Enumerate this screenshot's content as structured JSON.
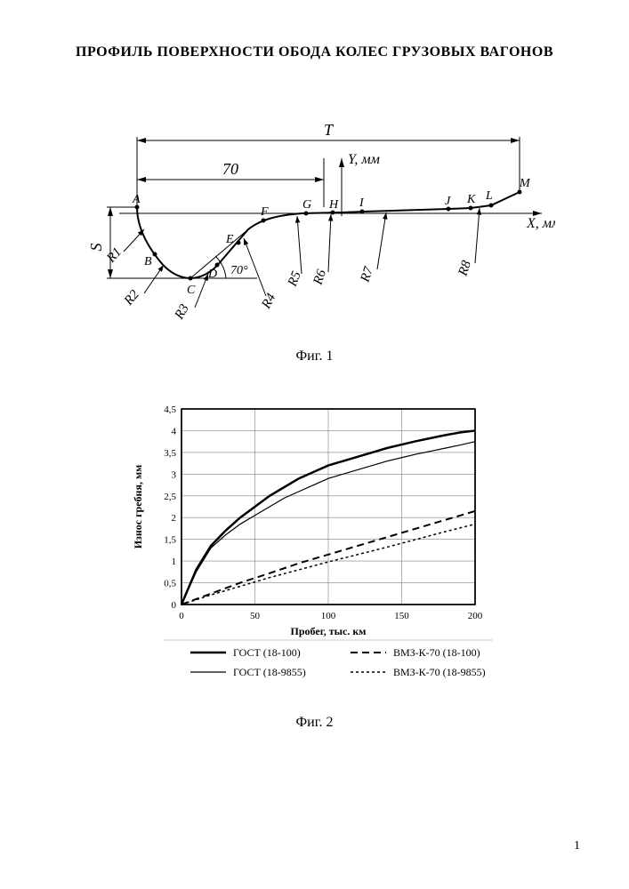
{
  "page": {
    "title": "ПРОФИЛЬ ПОВЕРХНОСТИ ОБОДА КОЛЕС ГРУЗОВЫХ ВАГОНОВ",
    "page_number": "1"
  },
  "fig1": {
    "caption": "Фиг. 1",
    "axis_y_label": "Y, мм",
    "axis_x_label": "X, мм",
    "dim_T": "T",
    "dim_70": "70",
    "dim_S": "S",
    "angle_70": "70°",
    "points": {
      "A": "A",
      "B": "B",
      "C": "C",
      "D": "D",
      "E": "E",
      "F": "F",
      "G": "G",
      "H": "H",
      "I": "I",
      "J": "J",
      "K": "K",
      "L": "L",
      "M": "M"
    },
    "radii": {
      "R1": "R1",
      "R2": "R2",
      "R3": "R3",
      "R4": "R4",
      "R5": "R5",
      "R6": "R6",
      "R7": "R7",
      "R8": "R8"
    },
    "colors": {
      "line": "#000000"
    }
  },
  "fig2": {
    "caption": "Фиг. 2",
    "type": "line",
    "xlabel": "Пробег, тыс. км",
    "ylabel": "Износ гребня, мм",
    "label_fontsize": 12,
    "tick_fontsize": 11,
    "xlim": [
      0,
      200
    ],
    "ylim": [
      0,
      4.5
    ],
    "xticks": [
      0,
      50,
      100,
      150,
      200
    ],
    "yticks": [
      0,
      0.5,
      1,
      1.5,
      2,
      2.5,
      3,
      3.5,
      4,
      4.5
    ],
    "ytick_labels": [
      "0",
      "0,5",
      "1",
      "1,5",
      "2",
      "2,5",
      "3",
      "3,5",
      "4",
      "4,5"
    ],
    "background_color": "#ffffff",
    "grid_color": "#808080",
    "axis_color": "#000000",
    "series": [
      {
        "name": "ГОСТ (18-100)",
        "color": "#000000",
        "dash": "solid",
        "width": 2.5,
        "x": [
          0,
          10,
          20,
          30,
          40,
          50,
          60,
          70,
          80,
          90,
          100,
          110,
          120,
          130,
          140,
          150,
          160,
          170,
          180,
          190,
          200
        ],
        "y": [
          0,
          0.8,
          1.35,
          1.7,
          2.0,
          2.25,
          2.5,
          2.7,
          2.9,
          3.05,
          3.2,
          3.3,
          3.4,
          3.5,
          3.6,
          3.68,
          3.76,
          3.83,
          3.9,
          3.96,
          4.0
        ]
      },
      {
        "name": "ГОСТ (18-9855)",
        "color": "#000000",
        "dash": "solid",
        "width": 1.2,
        "x": [
          0,
          10,
          20,
          30,
          40,
          50,
          60,
          70,
          80,
          90,
          100,
          110,
          120,
          130,
          140,
          150,
          160,
          170,
          180,
          190,
          200
        ],
        "y": [
          0,
          0.75,
          1.3,
          1.6,
          1.85,
          2.05,
          2.25,
          2.45,
          2.6,
          2.75,
          2.9,
          3.0,
          3.1,
          3.2,
          3.3,
          3.38,
          3.46,
          3.53,
          3.6,
          3.67,
          3.75
        ]
      },
      {
        "name": "ВМЗ-К-70 (18-100)",
        "color": "#000000",
        "dash": "8,5",
        "width": 2.0,
        "x": [
          0,
          20,
          40,
          60,
          80,
          100,
          120,
          140,
          160,
          180,
          200
        ],
        "y": [
          0,
          0.25,
          0.5,
          0.72,
          0.95,
          1.15,
          1.35,
          1.55,
          1.75,
          1.95,
          2.15
        ]
      },
      {
        "name": "ВМЗ-К-70 (18-9855)",
        "color": "#000000",
        "dash": "3,3",
        "width": 1.5,
        "x": [
          0,
          20,
          40,
          60,
          80,
          100,
          120,
          140,
          160,
          180,
          200
        ],
        "y": [
          0,
          0.22,
          0.42,
          0.62,
          0.8,
          0.98,
          1.15,
          1.32,
          1.5,
          1.68,
          1.85
        ]
      }
    ],
    "legend": {
      "position": "bottom"
    }
  }
}
